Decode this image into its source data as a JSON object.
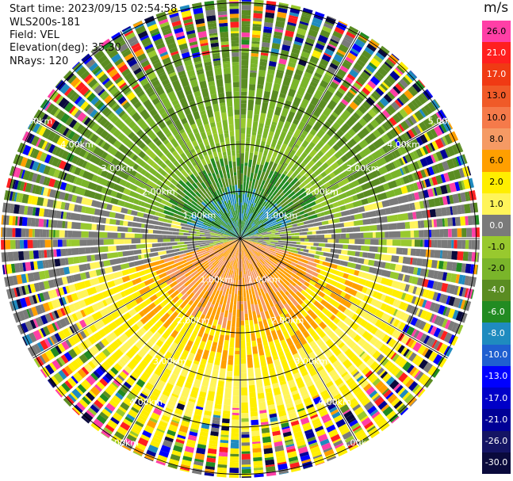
{
  "header": {
    "start_time": "Start time: 2023/09/15 02:54:58",
    "instrument": "WLS200s-181",
    "field": "Field: VEL",
    "elevation": "Elevation(deg): 35.30",
    "nrays": "NRays: 120"
  },
  "colorbar": {
    "unit": "m/s",
    "levels": [
      {
        "label": "26.0",
        "color": "#ff3fa6"
      },
      {
        "label": "21.0",
        "color": "#ff1f1f"
      },
      {
        "label": "17.0",
        "color": "#f03a14"
      },
      {
        "label": "13.0",
        "color": "#f05a28"
      },
      {
        "label": "10.0",
        "color": "#f57a4a"
      },
      {
        "label": "8.0",
        "color": "#f59a64"
      },
      {
        "label": "6.0",
        "color": "#ff9f00"
      },
      {
        "label": "2.0",
        "color": "#ffee00"
      },
      {
        "label": "1.0",
        "color": "#fff45a"
      },
      {
        "label": "0.0",
        "color": "#7a7a7a"
      },
      {
        "label": "-1.0",
        "color": "#98c92e"
      },
      {
        "label": "-2.0",
        "color": "#7ab52a"
      },
      {
        "label": "-4.0",
        "color": "#5a8c22"
      },
      {
        "label": "-6.0",
        "color": "#228b22"
      },
      {
        "label": "-8.0",
        "color": "#1f8bbf"
      },
      {
        "label": "-10.0",
        "color": "#1f5fd0"
      },
      {
        "label": "-13.0",
        "color": "#0000ff"
      },
      {
        "label": "-17.0",
        "color": "#0000c8"
      },
      {
        "label": "-21.0",
        "color": "#000096"
      },
      {
        "label": "-26.0",
        "color": "#141464"
      },
      {
        "label": "-30.0",
        "color": "#0a0a3c"
      }
    ]
  },
  "chart_data": {
    "type": "heatmap",
    "projection": "polar (PPI scan)",
    "field": "VEL",
    "units": "m/s",
    "nrays": 120,
    "elevation_deg": 35.3,
    "range_rings": [
      "1.00km",
      "2.00km",
      "3.00km",
      "4.00km",
      "5.00km"
    ],
    "range_ring_km": [
      1,
      2,
      3,
      4,
      5
    ],
    "spoke_count": 12,
    "color_scale_min": -30.0,
    "color_scale_max": 26.0,
    "pattern": {
      "north_sector": {
        "azimuth_range_deg": [
          270,
          90
        ],
        "velocity_ms": [
          -6,
          -1
        ]
      },
      "south_sector": {
        "azimuth_range_deg": [
          90,
          270
        ],
        "velocity_ms": [
          1,
          10
        ]
      },
      "west_flank": {
        "azimuth_range_deg": [
          230,
          300
        ],
        "velocity_ms": [
          0,
          2
        ]
      },
      "outer_noise_beyond_km": 3.5
    }
  }
}
